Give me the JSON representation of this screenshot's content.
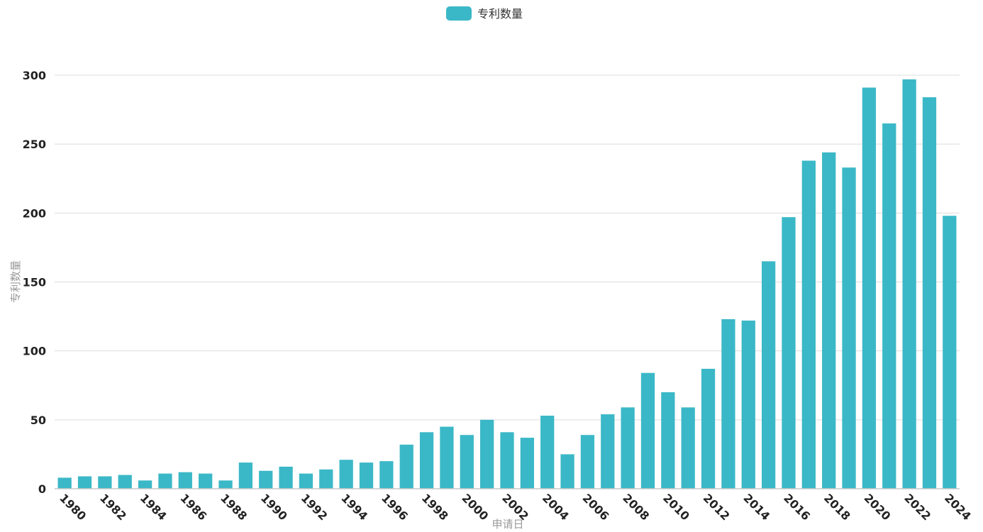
{
  "chart_data": {
    "type": "bar",
    "legend": {
      "label": "专利数量",
      "position": "top-center"
    },
    "xlabel": "申请日",
    "ylabel": "专利数量",
    "ylim": [
      0,
      300
    ],
    "y_ticks": [
      0,
      50,
      100,
      150,
      200,
      250,
      300
    ],
    "x_tick_labels": [
      "1980",
      "1982",
      "1984",
      "1986",
      "1988",
      "1990",
      "1992",
      "1994",
      "1996",
      "1998",
      "2000",
      "2002",
      "2004",
      "2006",
      "2008",
      "2010",
      "2012",
      "2014",
      "2016",
      "2018",
      "2020",
      "2022",
      "2024"
    ],
    "grid": true,
    "color": "#3bb8c7",
    "categories": [
      "1980",
      "1981",
      "1982",
      "1983",
      "1984",
      "1985",
      "1986",
      "1987",
      "1988",
      "1989",
      "1990",
      "1991",
      "1992",
      "1993",
      "1994",
      "1995",
      "1996",
      "1997",
      "1998",
      "1999",
      "2000",
      "2001",
      "2002",
      "2003",
      "2004",
      "2005",
      "2006",
      "2007",
      "2008",
      "2009",
      "2010",
      "2011",
      "2012",
      "2013",
      "2014",
      "2015",
      "2016",
      "2017",
      "2018",
      "2019",
      "2020",
      "2021",
      "2022",
      "2023",
      "2024"
    ],
    "series": [
      {
        "name": "专利数量",
        "values": [
          8,
          9,
          9,
          10,
          6,
          11,
          12,
          11,
          6,
          19,
          13,
          16,
          11,
          14,
          21,
          19,
          20,
          32,
          41,
          45,
          39,
          50,
          41,
          37,
          53,
          25,
          39,
          54,
          59,
          84,
          70,
          59,
          87,
          123,
          122,
          165,
          197,
          238,
          244,
          233,
          291,
          265,
          297,
          284,
          198
        ]
      }
    ]
  }
}
